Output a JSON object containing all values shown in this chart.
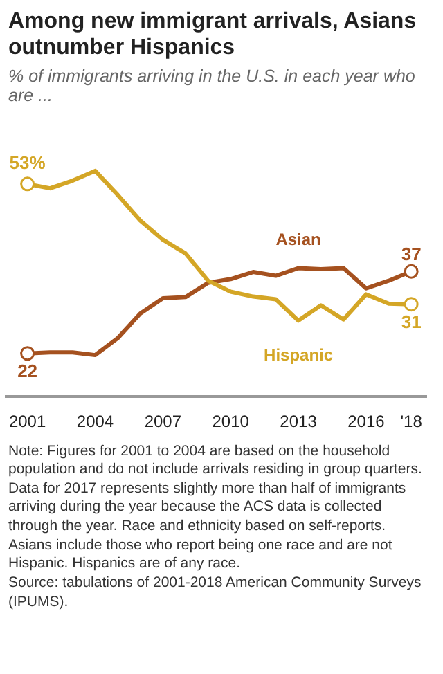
{
  "chart_data": {
    "type": "line",
    "title": "Among new immigrant arrivals, Asians outnumber Hispanics",
    "subtitle": "% of immigrants arriving in the U.S. in each year who are ...",
    "x": [
      2001,
      2002,
      2003,
      2004,
      2005,
      2006,
      2007,
      2008,
      2009,
      2010,
      2011,
      2012,
      2013,
      2014,
      2015,
      2016,
      2017,
      2018
    ],
    "series": [
      {
        "name": "Asian",
        "color": "#a5511f",
        "values": [
          22,
          22.2,
          22.2,
          21.7,
          24.8,
          29.3,
          32.1,
          32.3,
          34.9,
          35.6,
          36.9,
          36.2,
          37.6,
          37.4,
          37.6,
          33.9,
          35.3,
          37
        ],
        "value_labels": [
          "22",
          null,
          null,
          null,
          null,
          null,
          null,
          null,
          null,
          null,
          null,
          null,
          null,
          null,
          null,
          null,
          null,
          "37"
        ]
      },
      {
        "name": "Hispanic",
        "color": "#d4a626",
        "values": [
          53,
          52.2,
          53.6,
          55.4,
          51,
          46.3,
          42.8,
          40.3,
          35.3,
          33.3,
          32.4,
          31.9,
          28,
          30.8,
          28.2,
          32.8,
          31.1,
          31
        ],
        "value_labels": [
          "53%",
          null,
          null,
          null,
          null,
          null,
          null,
          null,
          null,
          null,
          null,
          null,
          null,
          null,
          null,
          null,
          null,
          "31"
        ]
      }
    ],
    "xlim": [
      2000,
      2018.7
    ],
    "xticks": [
      2001,
      2004,
      2007,
      2010,
      2013,
      2016,
      {
        "value": 2018,
        "label": "'18"
      }
    ],
    "tick_labels": "x",
    "grid": false,
    "line_style": "solid",
    "annotations": [
      "Note: Figures for 2001 to 2004 are based on the household population and do not include arrivals residing in group quarters. Data for 2017 represents slightly more than half of immigrants arriving during the year because the ACS data is collected through the year. Race and ethnicity based on self-reports. Asians include those who report being one race and are not Hispanic. Hispanics are of any race.",
      "Source: tabulations of 2001-2018 American Community Surveys (IPUMS)."
    ]
  }
}
